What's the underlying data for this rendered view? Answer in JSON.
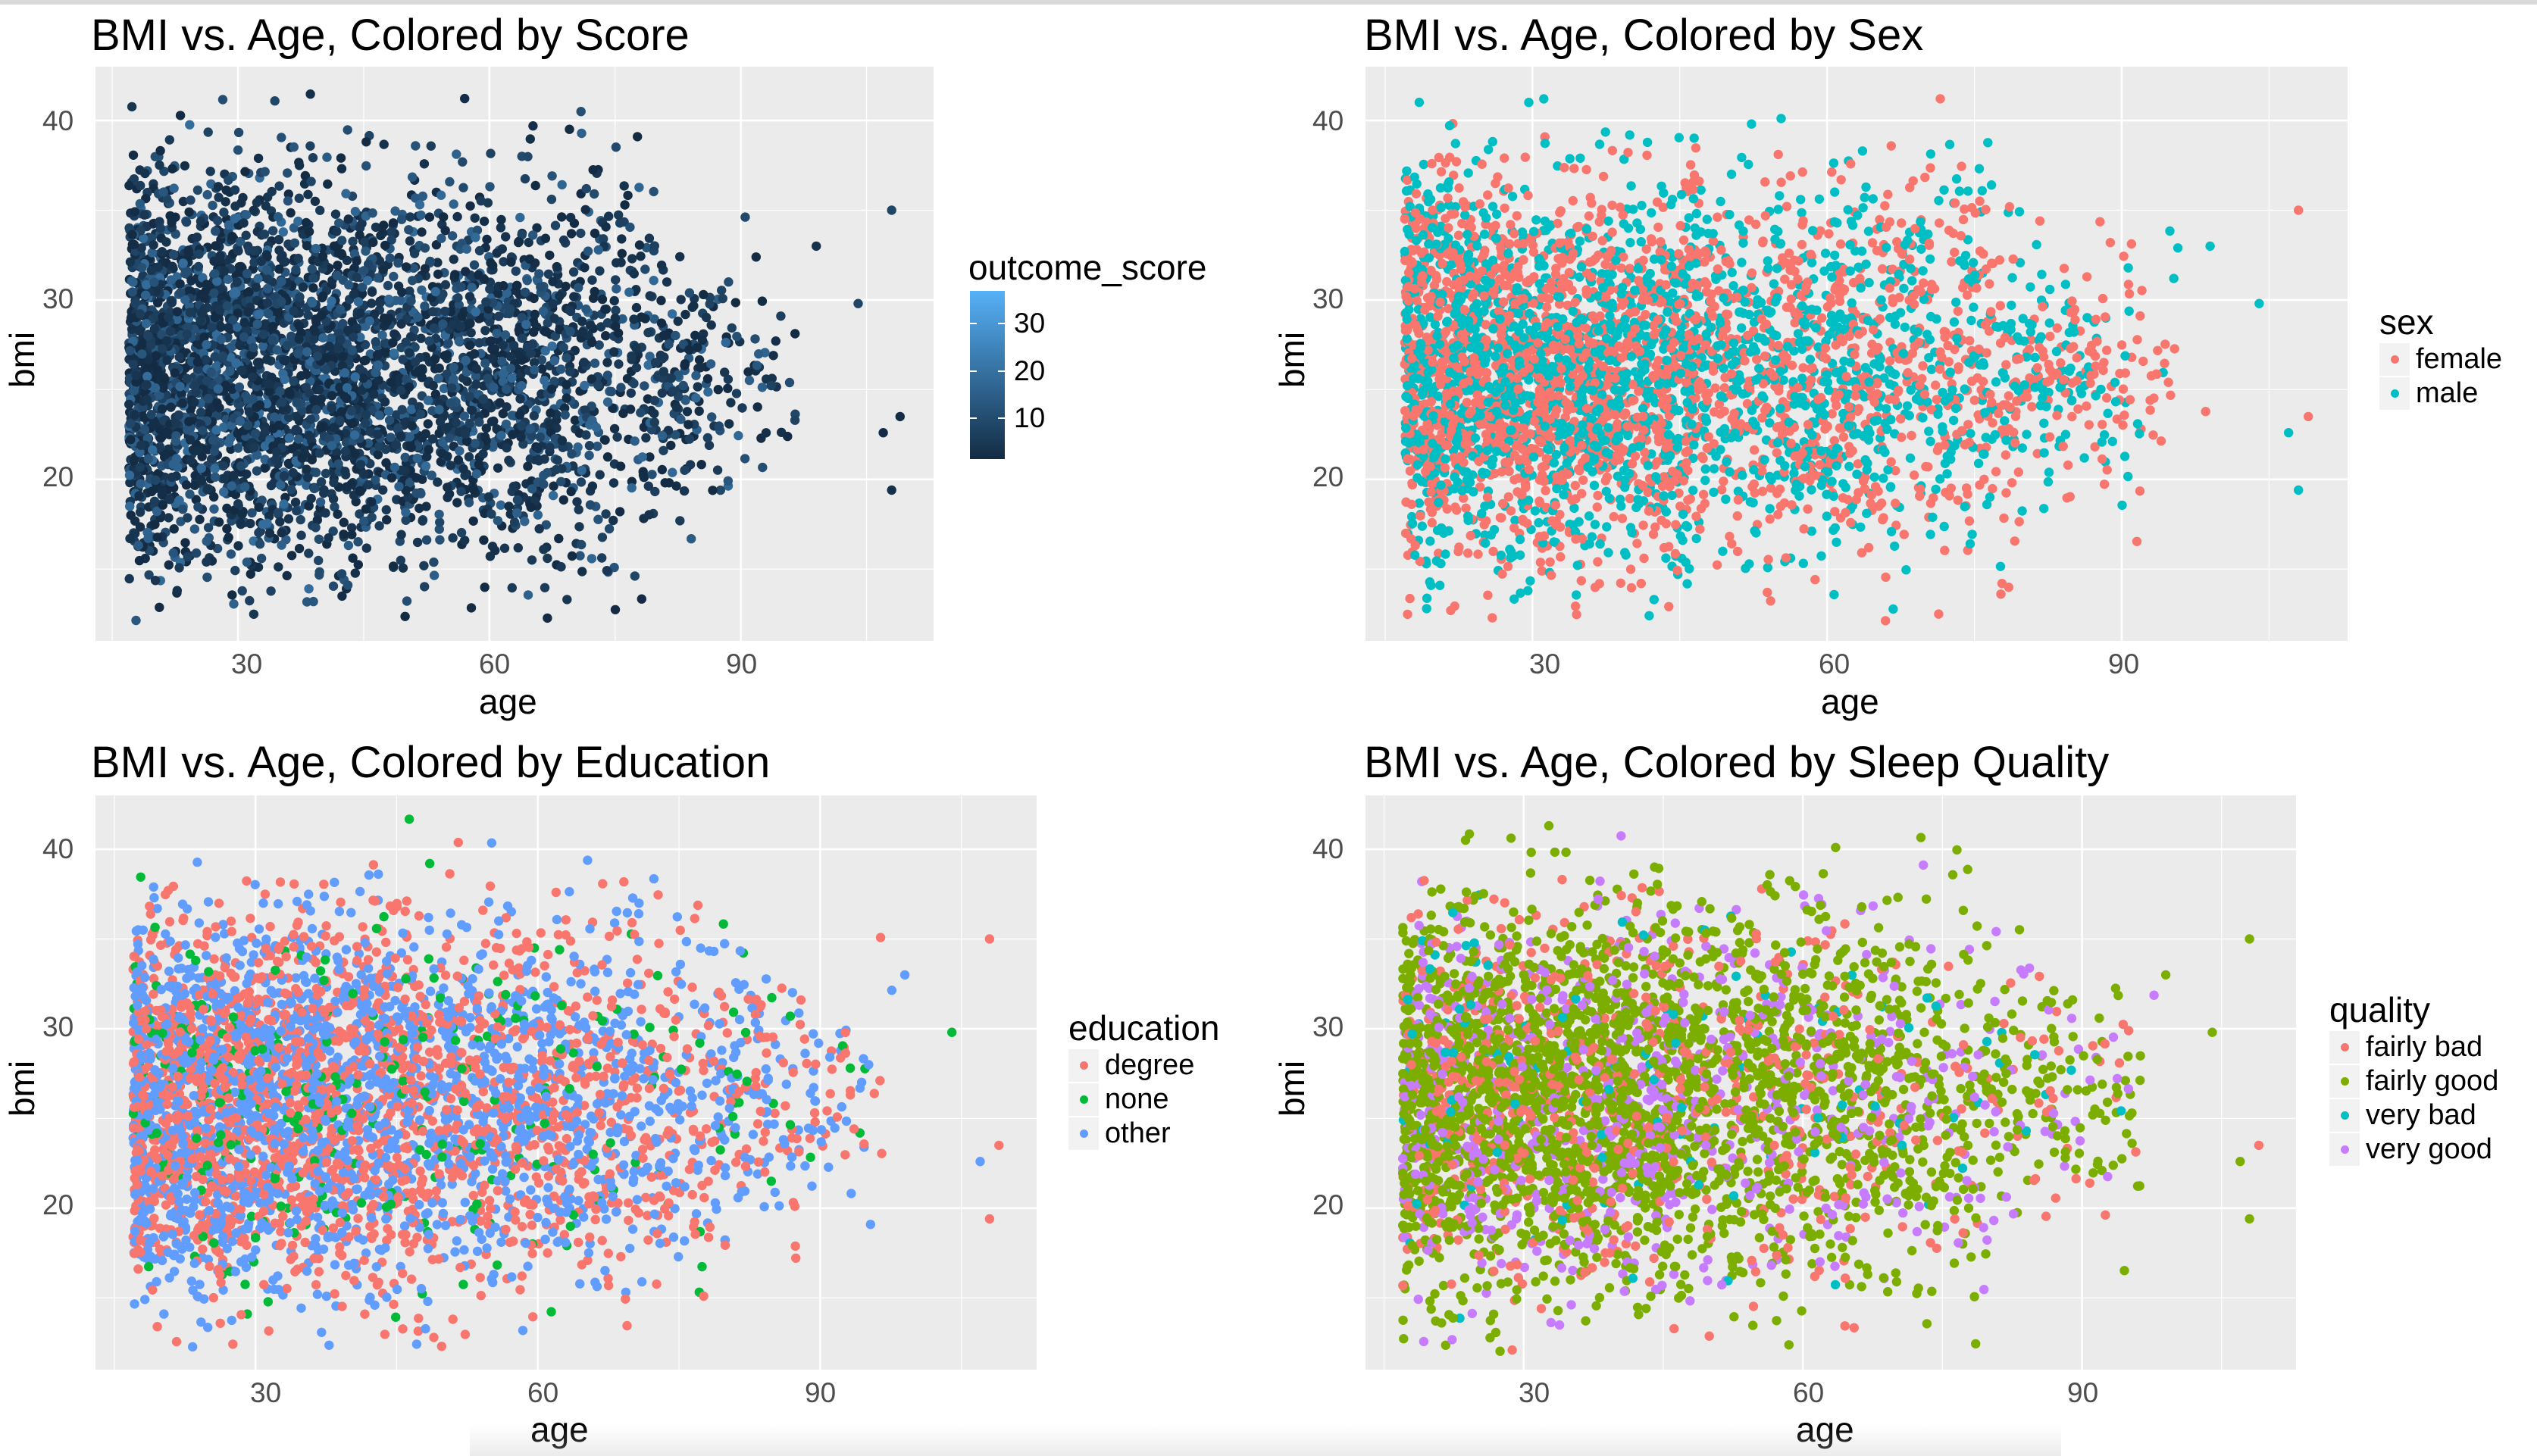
{
  "colors": {
    "panel_bg": "#ebebeb",
    "grid": "#ffffff",
    "score_low": "#132b43",
    "score_high": "#56b1f7",
    "female": "#f8766d",
    "male": "#00bfc4",
    "degree": "#f8766d",
    "none": "#00ba38",
    "other": "#619cff",
    "fairly_bad": "#f8766d",
    "fairly_good": "#7cae00",
    "very_bad": "#00bfc4",
    "very_good": "#c77cff"
  },
  "chart_data": [
    {
      "type": "scatter",
      "title": "BMI vs. Age, Colored by Score",
      "xlabel": "age",
      "ylabel": "bmi",
      "xlim": [
        13,
        113
      ],
      "ylim": [
        11,
        43
      ],
      "xticks": [
        "30",
        "60",
        "90"
      ],
      "yticks": [
        "20",
        "30",
        "40"
      ],
      "grid": true,
      "point_cloud": {
        "x_center": 50,
        "x_spread": 40,
        "y_center": 26,
        "y_spread": 5.5,
        "x_min": 17,
        "y_min": 12,
        "y_max": 42
      },
      "outliers": [
        [
          108,
          35
        ],
        [
          108,
          19.4
        ],
        [
          104,
          29.8
        ],
        [
          99,
          33
        ],
        [
          109,
          23.5
        ],
        [
          107,
          22.6
        ]
      ],
      "legend": {
        "title": "outcome_score",
        "type": "colorbar",
        "range": [
          4,
          36
        ],
        "ticks": [
          "30",
          "20",
          "10"
        ],
        "position": "right"
      }
    },
    {
      "type": "scatter",
      "title": "BMI vs. Age, Colored by Sex",
      "xlabel": "age",
      "ylabel": "bmi",
      "xlim": [
        13,
        113
      ],
      "ylim": [
        11,
        43
      ],
      "xticks": [
        "30",
        "60",
        "90"
      ],
      "yticks": [
        "20",
        "30",
        "40"
      ],
      "grid": true,
      "point_cloud": {
        "x_center": 50,
        "x_spread": 40,
        "y_center": 26,
        "y_spread": 5.5,
        "x_min": 17,
        "y_min": 12,
        "y_max": 42
      },
      "outliers": [
        [
          108,
          35
        ],
        [
          108,
          19.4
        ],
        [
          104,
          29.8
        ],
        [
          99,
          33
        ],
        [
          109,
          23.5
        ],
        [
          107,
          22.6
        ]
      ],
      "legend": {
        "title": "sex",
        "type": "points",
        "items": [
          {
            "label": "female",
            "color": "#f8766d"
          },
          {
            "label": "male",
            "color": "#00bfc4"
          }
        ],
        "position": "right"
      }
    },
    {
      "type": "scatter",
      "title": "BMI vs. Age, Colored by Education",
      "xlabel": "age",
      "ylabel": "bmi",
      "xlim": [
        13,
        113
      ],
      "ylim": [
        11,
        43
      ],
      "xticks": [
        "30",
        "60",
        "90"
      ],
      "yticks": [
        "20",
        "30",
        "40"
      ],
      "grid": true,
      "point_cloud": {
        "x_center": 50,
        "x_spread": 40,
        "y_center": 26,
        "y_spread": 5.5,
        "x_min": 17,
        "y_min": 12,
        "y_max": 42
      },
      "outliers": [
        [
          108,
          35
        ],
        [
          108,
          19.4
        ],
        [
          104,
          29.8
        ],
        [
          99,
          33
        ],
        [
          109,
          23.5
        ],
        [
          107,
          22.6
        ]
      ],
      "legend": {
        "title": "education",
        "type": "points",
        "items": [
          {
            "label": "degree",
            "color": "#f8766d"
          },
          {
            "label": "none",
            "color": "#00ba38"
          },
          {
            "label": "other",
            "color": "#619cff"
          }
        ],
        "position": "right"
      }
    },
    {
      "type": "scatter",
      "title": "BMI vs. Age, Colored by Sleep Quality",
      "xlabel": "age",
      "ylabel": "bmi",
      "xlim": [
        13,
        113
      ],
      "ylim": [
        11,
        43
      ],
      "xticks": [
        "30",
        "60",
        "90"
      ],
      "yticks": [
        "20",
        "30",
        "40"
      ],
      "grid": true,
      "point_cloud": {
        "x_center": 50,
        "x_spread": 40,
        "y_center": 26,
        "y_spread": 5.5,
        "x_min": 17,
        "y_min": 12,
        "y_max": 42
      },
      "outliers": [
        [
          108,
          35
        ],
        [
          108,
          19.4
        ],
        [
          104,
          29.8
        ],
        [
          99,
          33
        ],
        [
          109,
          23.5
        ],
        [
          107,
          22.6
        ]
      ],
      "legend": {
        "title": "quality",
        "type": "points",
        "items": [
          {
            "label": "fairly bad",
            "color": "#f8766d"
          },
          {
            "label": "fairly good",
            "color": "#7cae00"
          },
          {
            "label": "very bad",
            "color": "#00bfc4"
          },
          {
            "label": "very good",
            "color": "#c77cff"
          }
        ],
        "position": "right"
      }
    }
  ]
}
